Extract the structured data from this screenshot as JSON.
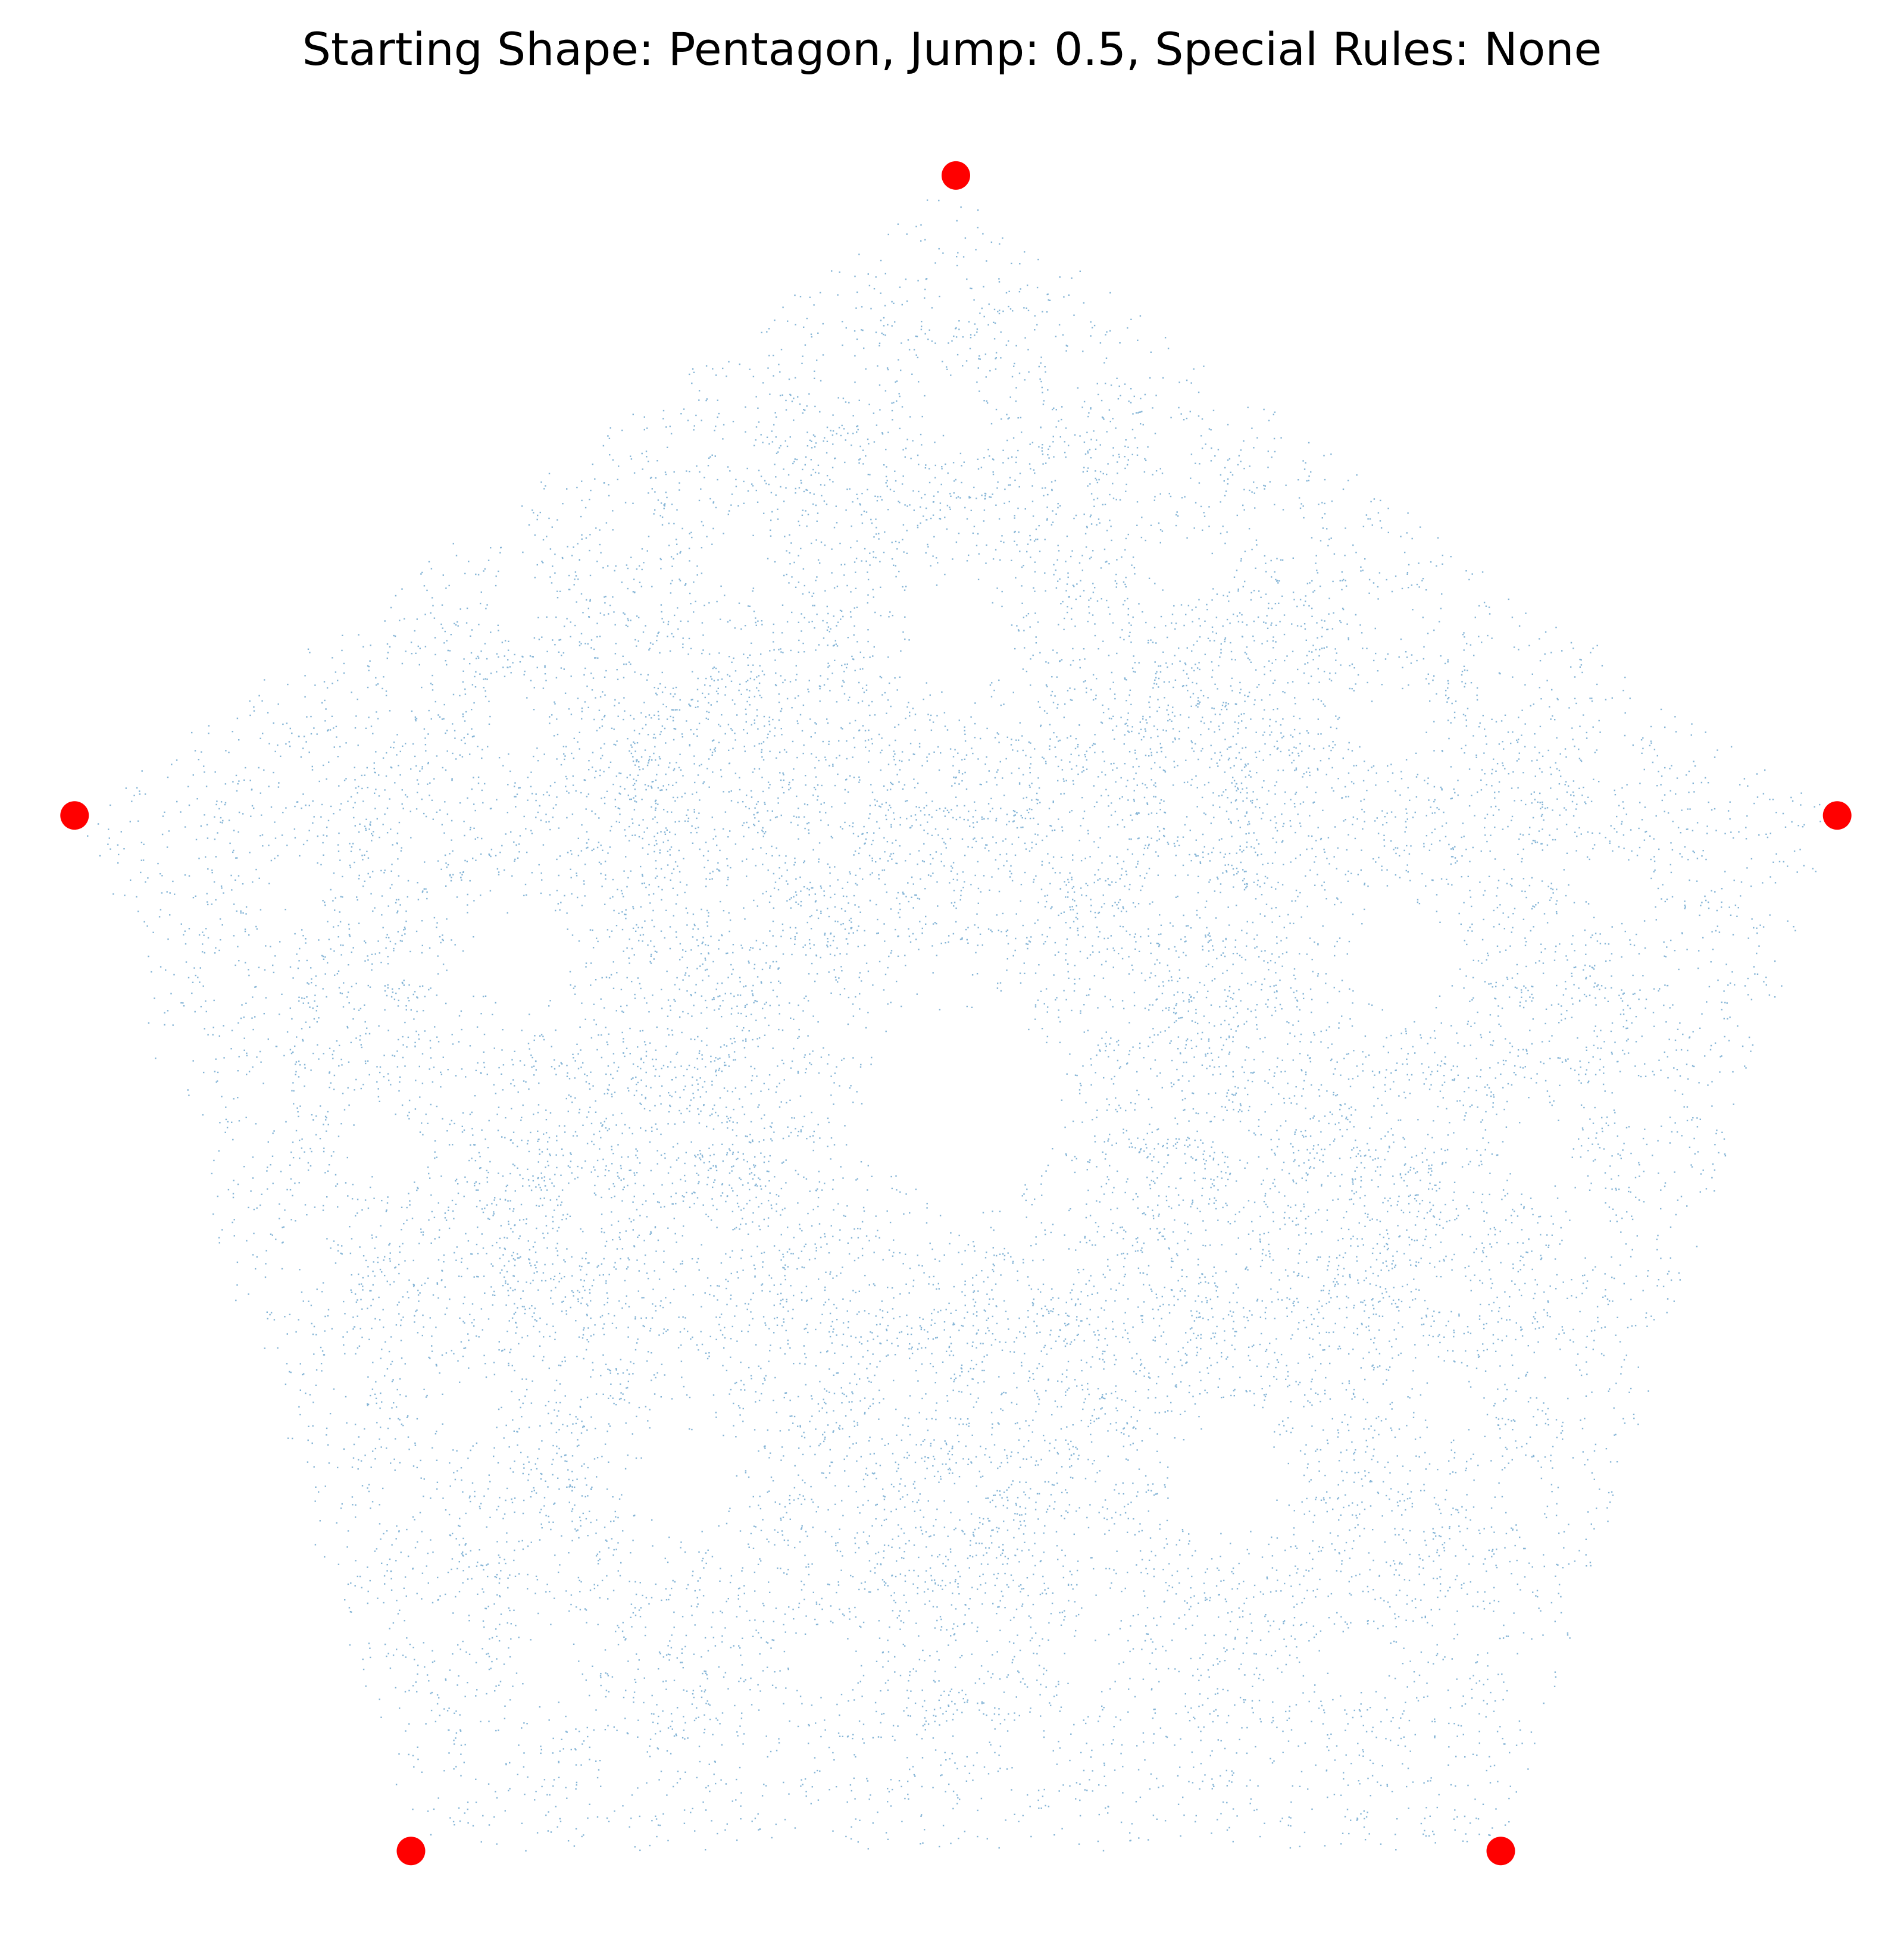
{
  "chart_data": {
    "type": "chaos-game",
    "title": "Starting Shape: Pentagon, Jump: 0.5, Special Rules: None",
    "jump": 0.5,
    "axis": false,
    "xlim": [
      -1,
      1
    ],
    "ylim": [
      -0.85,
      1.05
    ],
    "points_color": "#1f77b4",
    "vertices": {
      "color": "#ff0000",
      "x": [
        0,
        0.951,
        0.588,
        -0.588,
        -0.951
      ],
      "y": [
        1,
        0.309,
        -0.809,
        -0.809,
        0.309
      ]
    }
  }
}
